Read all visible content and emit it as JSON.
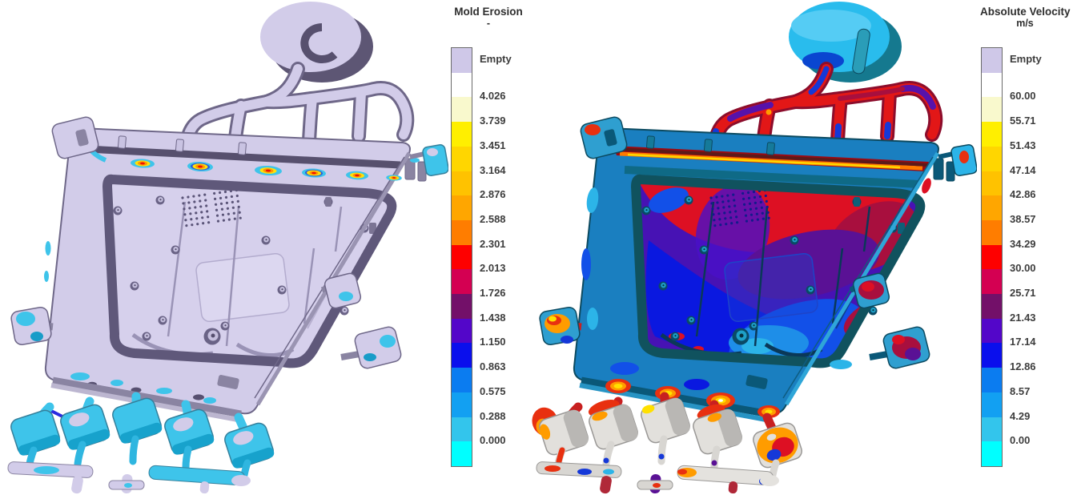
{
  "chart_data": [
    {
      "type": "heatmap",
      "title": "Mold Erosion",
      "unit": "-",
      "legend_position": "right",
      "scale": {
        "empty_label": "Empty",
        "tick_labels": [
          "4.026",
          "3.739",
          "3.451",
          "3.164",
          "2.876",
          "2.588",
          "2.301",
          "2.013",
          "1.726",
          "1.438",
          "1.150",
          "0.863",
          "0.575",
          "0.288",
          "0.000"
        ],
        "min": 0.0,
        "max": 4.026,
        "band_colors": [
          "#cfc8e8",
          "#ffffff",
          "#f9f9cd",
          "#ffef00",
          "#ffd600",
          "#ffc200",
          "#ffa600",
          "#ff7d00",
          "#fe0000",
          "#d40052",
          "#731069",
          "#5306c9",
          "#0a0fed",
          "#0b7cf0",
          "#12a0f2",
          "#33c5ec",
          "#00ffff"
        ]
      }
    },
    {
      "type": "heatmap",
      "title": "Absolute Velocity",
      "unit": "m/s",
      "legend_position": "right",
      "scale": {
        "empty_label": "Empty",
        "tick_labels": [
          "60.00",
          "55.71",
          "51.43",
          "47.14",
          "42.86",
          "38.57",
          "34.29",
          "30.00",
          "25.71",
          "21.43",
          "17.14",
          "12.86",
          "8.57",
          "4.29",
          "0.00"
        ],
        "min": 0.0,
        "max": 60.0,
        "band_colors": [
          "#cfc8e8",
          "#ffffff",
          "#f9f9cd",
          "#ffef00",
          "#ffd600",
          "#ffc200",
          "#ffa600",
          "#ff7d00",
          "#fe0000",
          "#d40052",
          "#731069",
          "#5306c9",
          "#0a0fed",
          "#0b7cf0",
          "#12a0f2",
          "#33c5ec",
          "#00ffff"
        ]
      }
    }
  ],
  "palette": {
    "left_model": {
      "disc_side": "#5d5674",
      "disc_face": "#d2cce9",
      "notch": "#57506e",
      "runner_edge": "#6e6788",
      "runner_fill": "#d2cce9",
      "face": "#d2cce9",
      "edge": "#6e6788",
      "wall_dark": "#57506e",
      "wall_mid": "#8a84a2",
      "wall_light": "#bcb6d0",
      "wall_side": "#9a94b2",
      "edge_thin": "#6e6788",
      "ring": "#5f587a",
      "floor": "#d6d0ec",
      "floor_line": "#b7b0d0",
      "pad_fill": "#dcd7f0",
      "pad_edge": "#b3acce",
      "rib": "#9a93b6",
      "dot": "#5a5478",
      "boss_ring": "#6a6386",
      "boss_face": "#c6c0de",
      "boss_dot": "#554e6e",
      "hole": "#575070",
      "clip": "#7b7494",
      "post": "#c9c3e2",
      "tab": "#d2cce9",
      "tab_edge": "#6e6788",
      "tab_shade": "#8a84a2",
      "conn": "#3ec4ea",
      "cube": "#3ec4ea",
      "cube_edge": "#35809c",
      "cube_shade": "#17a2cc",
      "cube_patch": "#d2cce9",
      "stem": "#2fb6e0",
      "bar": "#d2cce9",
      "bar_edge": "#8a84a2",
      "tail": "#d2cce9",
      "cap": "#d2cce9",
      "cyan": "#3ec4ea",
      "cyan_deep": "#189cc8",
      "blue": "#2a2ae0",
      "hot_yellow": "#ffe10a",
      "hot_orange": "#ff9400",
      "hot_red": "#f01000",
      "hot_blue": "#2f55d8"
    },
    "right_model": {
      "disc_side": "#15798f",
      "disc_face": "#29bced",
      "disc_light": "#55ccf4",
      "disc_blue": "#0a46d0",
      "puller": "#2a9db8",
      "notch": "#0a46d0",
      "runner_edge": "#8c0d2c",
      "runner_fill": "#e21717",
      "run_purple": "#5712aa",
      "run_blue": "#1538d8",
      "run_crimson": "#a80f3e",
      "face": "#1a7fc0",
      "edge": "#0c4a60",
      "wall_dark": "#5c1a1a",
      "wall_mid": "#0a5878",
      "wall_light": "#2794c4",
      "wall_side": "#2fa6d8",
      "edge_thin": "#0e5c80",
      "band_red": "#9c0a12",
      "streak_orange": "#ff7a00",
      "streak_yellow": "#ffd800",
      "gap_teal": "#0f6a86",
      "ring": "#10525e",
      "floor": "#4712b4",
      "floor_line": "#0e3c8c",
      "pad_fill": "rgba(30,70,210,0.35)",
      "pad_edge": "#1e44c8",
      "rib": "#0a3858",
      "dot": "#141a8c",
      "boss_ring": "#0a4a66",
      "boss_face": "#1ea0c8",
      "boss_dot": "#06303f",
      "hole": "#06283c",
      "clip": "#0e6078",
      "post": "#157a9a",
      "tab": "#2f9fd0",
      "tab_edge": "#0c4a60",
      "tab_shade": "#0a5878",
      "conn": "#c82020",
      "cube": "#e2e0dc",
      "cube_edge": "#9a9896",
      "cube_shade": "#b9b7b4",
      "cube_patch": "#ffffff",
      "stem": "#d8d6d2",
      "bar": "#d8d6d2",
      "bar_edge": "#9a9896",
      "tail": "#b02838",
      "cap": "#e4e2de",
      "red_region": "#dd1023",
      "crimson": "#a80f3e",
      "purple": "#5a1195",
      "violet": "#4a10c8",
      "blue_region": "#0a18e0",
      "mid_blue": "#1250e8",
      "light_blue": "#1e8ee8",
      "cyan2": "#2cb4e8",
      "flame_red": "#e83010",
      "flame_orange": "#ff9c00",
      "flame_yellow": "#ffe000",
      "white_hot": "#ffffff"
    }
  }
}
